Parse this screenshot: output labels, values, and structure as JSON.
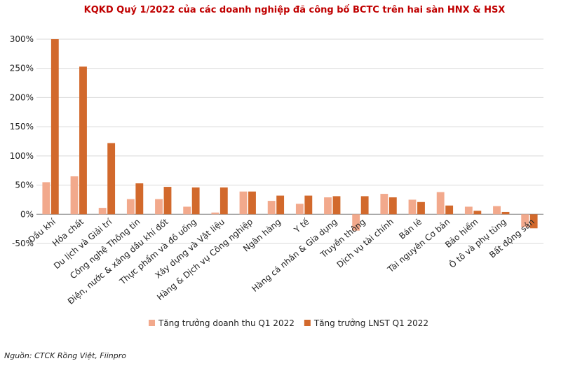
{
  "chart_data": {
    "type": "bar",
    "title": "KQKD Quý 1/2022 của các doanh nghiệp đã công bố BCTC trên hai sàn HNX & HSX",
    "categories": [
      "Dầu khí",
      "Hóa chất",
      "Du lịch và Giải trí",
      "Công nghệ Thông tin",
      "Điện, nước & xăng dầu khí đốt",
      "Thực phẩm và đồ uống",
      "Xây dựng và Vật liệu",
      "Hàng & Dịch vụ Công nghiệp",
      "Ngân hàng",
      "Y tế",
      "Hàng cá nhân & Gia dụng",
      "Truyền thông",
      "Dịch vụ tài chính",
      "Bán lẻ",
      "Tài nguyên Cơ bản",
      "Bảo hiểm",
      "Ô tô và phụ tùng",
      "Bất động sản"
    ],
    "series": [
      {
        "name": "Tăng trưởng doanh thu Q1 2022",
        "color": "#f2a98c",
        "values": [
          55,
          65,
          11,
          26,
          26,
          13,
          3,
          39,
          23,
          18,
          29,
          -28,
          35,
          25,
          38,
          13,
          14,
          -22
        ]
      },
      {
        "name": "Tăng trưởng LNST Q1 2022",
        "color": "#d2692c",
        "values": [
          300,
          253,
          122,
          53,
          47,
          46,
          46,
          39,
          32,
          32,
          31,
          31,
          29,
          21,
          15,
          6,
          4,
          -24
        ]
      }
    ],
    "ylim": [
      -50,
      300
    ],
    "yticks": [
      {
        "value": -50,
        "label": "-50%"
      },
      {
        "value": 0,
        "label": "0%"
      },
      {
        "value": 50,
        "label": "50%"
      },
      {
        "value": 100,
        "label": "100%"
      },
      {
        "value": 150,
        "label": "150%"
      },
      {
        "value": 200,
        "label": "200%"
      },
      {
        "value": 250,
        "label": "250%"
      },
      {
        "value": 300,
        "label": "300%"
      }
    ],
    "grid": true,
    "legend": "bottom",
    "source": "Nguồn: CTCK Rồng Việt, Fiinpro"
  }
}
